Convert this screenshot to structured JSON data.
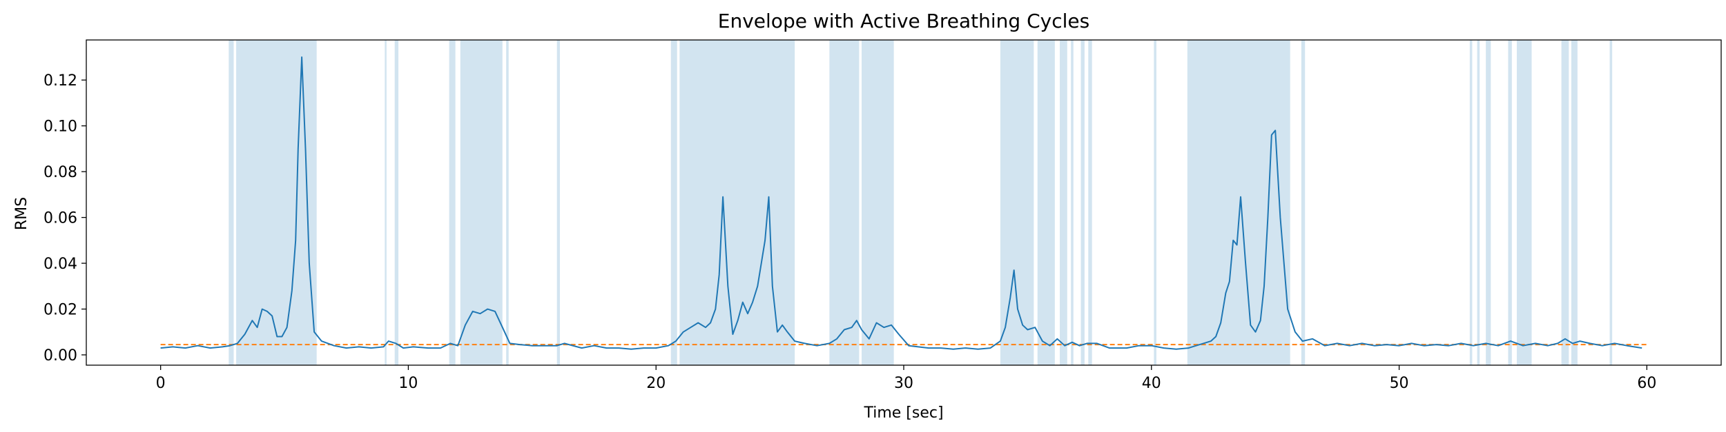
{
  "chart_data": {
    "type": "line",
    "title": "Envelope with Active Breathing Cycles",
    "xlabel": "Time [sec]",
    "ylabel": "RMS",
    "xlim": [
      -3,
      63
    ],
    "ylim": [
      -0.0045,
      0.1375
    ],
    "x_ticks": [
      0,
      10,
      20,
      30,
      40,
      50,
      60
    ],
    "x_tick_labels": [
      "0",
      "10",
      "20",
      "30",
      "40",
      "50",
      "60"
    ],
    "y_ticks": [
      0.0,
      0.02,
      0.04,
      0.06,
      0.08,
      0.1,
      0.12
    ],
    "y_tick_labels": [
      "0.00",
      "0.02",
      "0.04",
      "0.06",
      "0.08",
      "0.10",
      "0.12"
    ],
    "grid": false,
    "legend": "none",
    "colors": {
      "envelope": "#1f77b4",
      "threshold": "#ff7f0e",
      "band": "#1f77b4",
      "band_opacity": 0.2
    },
    "threshold": 0.0045,
    "threshold_x_range": [
      0,
      60
    ],
    "active_cycles": [
      [
        2.75,
        2.95
      ],
      [
        3.05,
        6.3
      ],
      [
        9.05,
        9.12
      ],
      [
        9.45,
        9.6
      ],
      [
        11.65,
        11.9
      ],
      [
        12.1,
        13.8
      ],
      [
        13.95,
        14.05
      ],
      [
        16.0,
        16.12
      ],
      [
        20.6,
        20.85
      ],
      [
        20.95,
        25.6
      ],
      [
        27.0,
        28.2
      ],
      [
        28.3,
        29.6
      ],
      [
        33.9,
        35.25
      ],
      [
        35.4,
        36.1
      ],
      [
        36.3,
        36.6
      ],
      [
        36.75,
        36.85
      ],
      [
        37.15,
        37.3
      ],
      [
        37.45,
        37.6
      ],
      [
        40.1,
        40.2
      ],
      [
        41.45,
        45.6
      ],
      [
        46.05,
        46.2
      ],
      [
        52.85,
        52.95
      ],
      [
        53.15,
        53.25
      ],
      [
        53.5,
        53.7
      ],
      [
        54.4,
        54.55
      ],
      [
        54.75,
        55.35
      ],
      [
        56.55,
        56.85
      ],
      [
        56.95,
        57.2
      ],
      [
        58.5,
        58.6
      ]
    ],
    "envelope": {
      "name": "",
      "x": [
        0,
        0.5,
        1,
        1.5,
        2,
        2.5,
        2.8,
        3.1,
        3.4,
        3.7,
        3.9,
        4.1,
        4.3,
        4.5,
        4.7,
        4.9,
        5.1,
        5.3,
        5.45,
        5.55,
        5.7,
        5.85,
        6.0,
        6.2,
        6.5,
        7,
        7.5,
        8,
        8.5,
        9,
        9.2,
        9.5,
        9.8,
        10.2,
        10.8,
        11.3,
        11.7,
        12.0,
        12.3,
        12.6,
        12.9,
        13.2,
        13.5,
        13.8,
        14.1,
        14.5,
        15,
        15.5,
        16,
        16.3,
        17,
        17.5,
        18,
        18.5,
        19,
        19.5,
        20,
        20.5,
        20.8,
        21.1,
        21.4,
        21.7,
        22.0,
        22.2,
        22.4,
        22.55,
        22.7,
        22.9,
        23.1,
        23.3,
        23.5,
        23.7,
        23.9,
        24.1,
        24.25,
        24.4,
        24.55,
        24.7,
        24.9,
        25.1,
        25.3,
        25.6,
        26,
        26.5,
        27.0,
        27.3,
        27.6,
        27.9,
        28.1,
        28.3,
        28.6,
        28.9,
        29.2,
        29.5,
        29.8,
        30.2,
        31,
        31.5,
        32,
        32.5,
        33,
        33.5,
        33.9,
        34.1,
        34.3,
        34.45,
        34.6,
        34.8,
        35.0,
        35.3,
        35.6,
        35.9,
        36.2,
        36.5,
        36.8,
        37.1,
        37.4,
        37.8,
        38.3,
        39,
        39.5,
        40,
        40.5,
        41,
        41.5,
        41.8,
        42.1,
        42.4,
        42.6,
        42.8,
        43.0,
        43.15,
        43.3,
        43.45,
        43.6,
        43.8,
        44.0,
        44.2,
        44.4,
        44.55,
        44.7,
        44.85,
        45.0,
        45.2,
        45.5,
        45.8,
        46.1,
        46.5,
        47,
        47.5,
        48,
        48.5,
        49,
        49.5,
        50,
        50.5,
        51,
        51.5,
        52,
        52.5,
        53,
        53.5,
        54,
        54.5,
        55,
        55.5,
        56,
        56.4,
        56.7,
        57.0,
        57.3,
        57.7,
        58.2,
        58.7,
        59.2,
        59.8
      ],
      "y": [
        0.003,
        0.0035,
        0.003,
        0.004,
        0.003,
        0.0035,
        0.004,
        0.005,
        0.009,
        0.015,
        0.012,
        0.02,
        0.019,
        0.017,
        0.008,
        0.008,
        0.012,
        0.028,
        0.05,
        0.09,
        0.13,
        0.09,
        0.04,
        0.01,
        0.006,
        0.004,
        0.003,
        0.0035,
        0.003,
        0.0035,
        0.006,
        0.005,
        0.003,
        0.0035,
        0.003,
        0.003,
        0.005,
        0.004,
        0.013,
        0.019,
        0.018,
        0.02,
        0.019,
        0.012,
        0.005,
        0.0045,
        0.004,
        0.004,
        0.004,
        0.005,
        0.003,
        0.004,
        0.003,
        0.003,
        0.0025,
        0.003,
        0.003,
        0.004,
        0.006,
        0.01,
        0.012,
        0.014,
        0.012,
        0.014,
        0.02,
        0.035,
        0.069,
        0.03,
        0.009,
        0.015,
        0.023,
        0.018,
        0.023,
        0.03,
        0.04,
        0.05,
        0.069,
        0.03,
        0.01,
        0.013,
        0.01,
        0.006,
        0.005,
        0.004,
        0.005,
        0.007,
        0.011,
        0.012,
        0.015,
        0.011,
        0.007,
        0.014,
        0.012,
        0.013,
        0.009,
        0.004,
        0.003,
        0.003,
        0.0025,
        0.003,
        0.0025,
        0.003,
        0.006,
        0.012,
        0.025,
        0.037,
        0.02,
        0.013,
        0.011,
        0.012,
        0.006,
        0.004,
        0.007,
        0.004,
        0.0055,
        0.004,
        0.005,
        0.005,
        0.003,
        0.003,
        0.004,
        0.004,
        0.003,
        0.0025,
        0.003,
        0.004,
        0.005,
        0.006,
        0.008,
        0.014,
        0.027,
        0.032,
        0.05,
        0.048,
        0.069,
        0.04,
        0.013,
        0.01,
        0.015,
        0.03,
        0.06,
        0.096,
        0.098,
        0.06,
        0.02,
        0.01,
        0.006,
        0.007,
        0.004,
        0.005,
        0.004,
        0.005,
        0.004,
        0.0045,
        0.004,
        0.005,
        0.004,
        0.0045,
        0.004,
        0.005,
        0.004,
        0.005,
        0.004,
        0.006,
        0.004,
        0.005,
        0.004,
        0.005,
        0.007,
        0.005,
        0.006,
        0.005,
        0.004,
        0.005,
        0.004,
        0.003
      ]
    }
  }
}
